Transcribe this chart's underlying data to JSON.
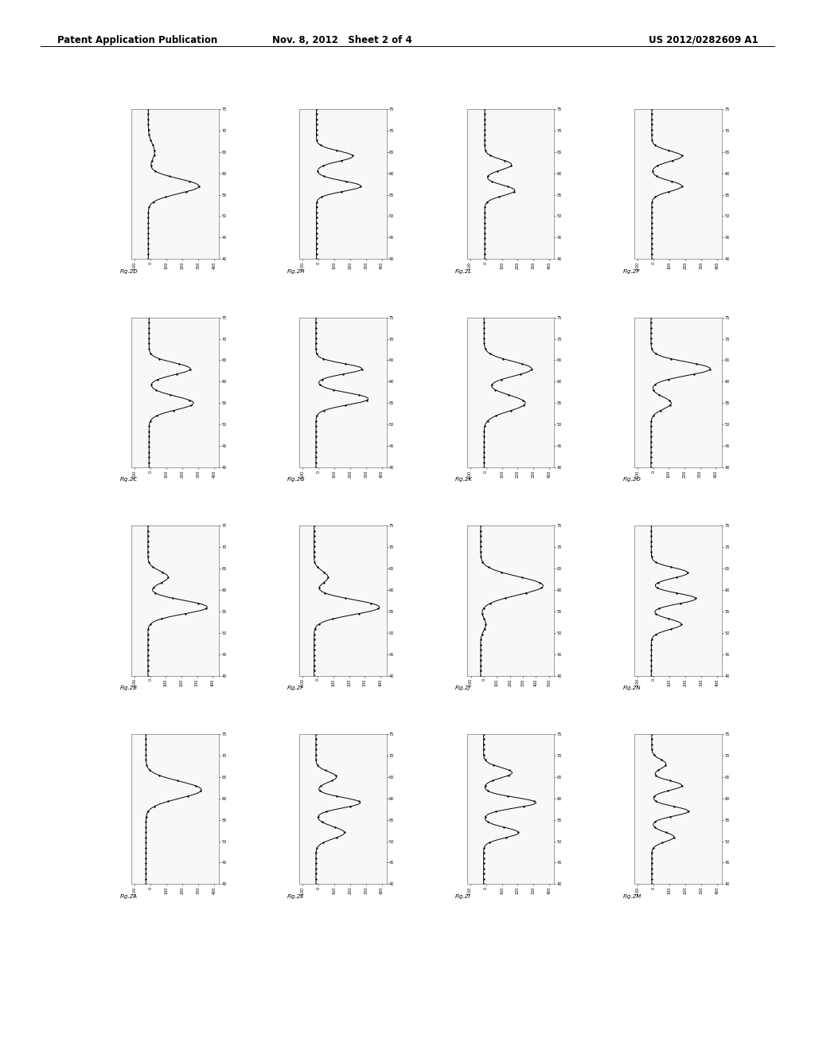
{
  "header_left": "Patent Application Publication",
  "header_center": "Nov. 8, 2012   Sheet 2 of 4",
  "header_right": "US 2012/0282609 A1",
  "background_color": "#ffffff",
  "page_width": 10.24,
  "page_height": 13.2,
  "figures": [
    {
      "label": "Fig.2D",
      "curve_type": "single_left_peak",
      "row": 0,
      "col": 0
    },
    {
      "label": "Fig.2H",
      "curve_type": "double_peak_sharp",
      "row": 0,
      "col": 1
    },
    {
      "label": "Fig.2L",
      "curve_type": "double_peak_close",
      "row": 0,
      "col": 2
    },
    {
      "label": "Fig.2P",
      "curve_type": "double_peak_narrow",
      "row": 0,
      "col": 3
    },
    {
      "label": "Fig.2C",
      "curve_type": "double_peak_equal",
      "row": 1,
      "col": 0
    },
    {
      "label": "Fig.2G",
      "curve_type": "double_peak_tall",
      "row": 1,
      "col": 1
    },
    {
      "label": "Fig.2K",
      "curve_type": "double_peak_wide",
      "row": 1,
      "col": 2
    },
    {
      "label": "Fig.2O",
      "curve_type": "double_peak_right",
      "row": 1,
      "col": 3
    },
    {
      "label": "Fig.2B",
      "curve_type": "double_peak_left_large",
      "row": 2,
      "col": 0
    },
    {
      "label": "Fig.2F",
      "curve_type": "double_peak_left_large2",
      "row": 2,
      "col": 1
    },
    {
      "label": "Fig.2J",
      "curve_type": "large_single_peak",
      "row": 2,
      "col": 2
    },
    {
      "label": "Fig.2N",
      "curve_type": "multi_peak2",
      "row": 2,
      "col": 3
    },
    {
      "label": "Fig.2A",
      "curve_type": "single_right_peak",
      "row": 3,
      "col": 0
    },
    {
      "label": "Fig.2E",
      "curve_type": "triple_peak",
      "row": 3,
      "col": 1
    },
    {
      "label": "Fig.2I",
      "curve_type": "triple_peak2",
      "row": 3,
      "col": 2
    },
    {
      "label": "Fig.2M",
      "curve_type": "multi_peak",
      "row": 3,
      "col": 3
    }
  ],
  "x_range": [
    40,
    75
  ],
  "curve_color": "#000000",
  "dot_color": "#000000",
  "label_fontsize": 5.0,
  "tick_fontsize": 3.5,
  "header_fontsize": 8.5
}
